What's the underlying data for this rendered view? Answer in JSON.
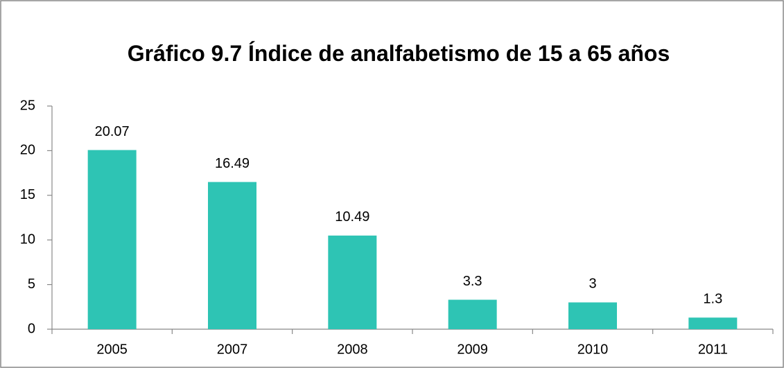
{
  "chart_data": {
    "type": "bar",
    "title": "Gráfico 9.7 Índice de analfabetismo de 15 a 65 años",
    "categories": [
      "2005",
      "2007",
      "2008",
      "2009",
      "2010",
      "2011"
    ],
    "values": [
      20.07,
      16.49,
      10.49,
      3.3,
      3,
      1.3
    ],
    "color": "#2ec4b4",
    "ylim": [
      0,
      25
    ],
    "yticks": [
      0,
      5,
      10,
      15,
      20,
      25
    ],
    "grid": false
  }
}
